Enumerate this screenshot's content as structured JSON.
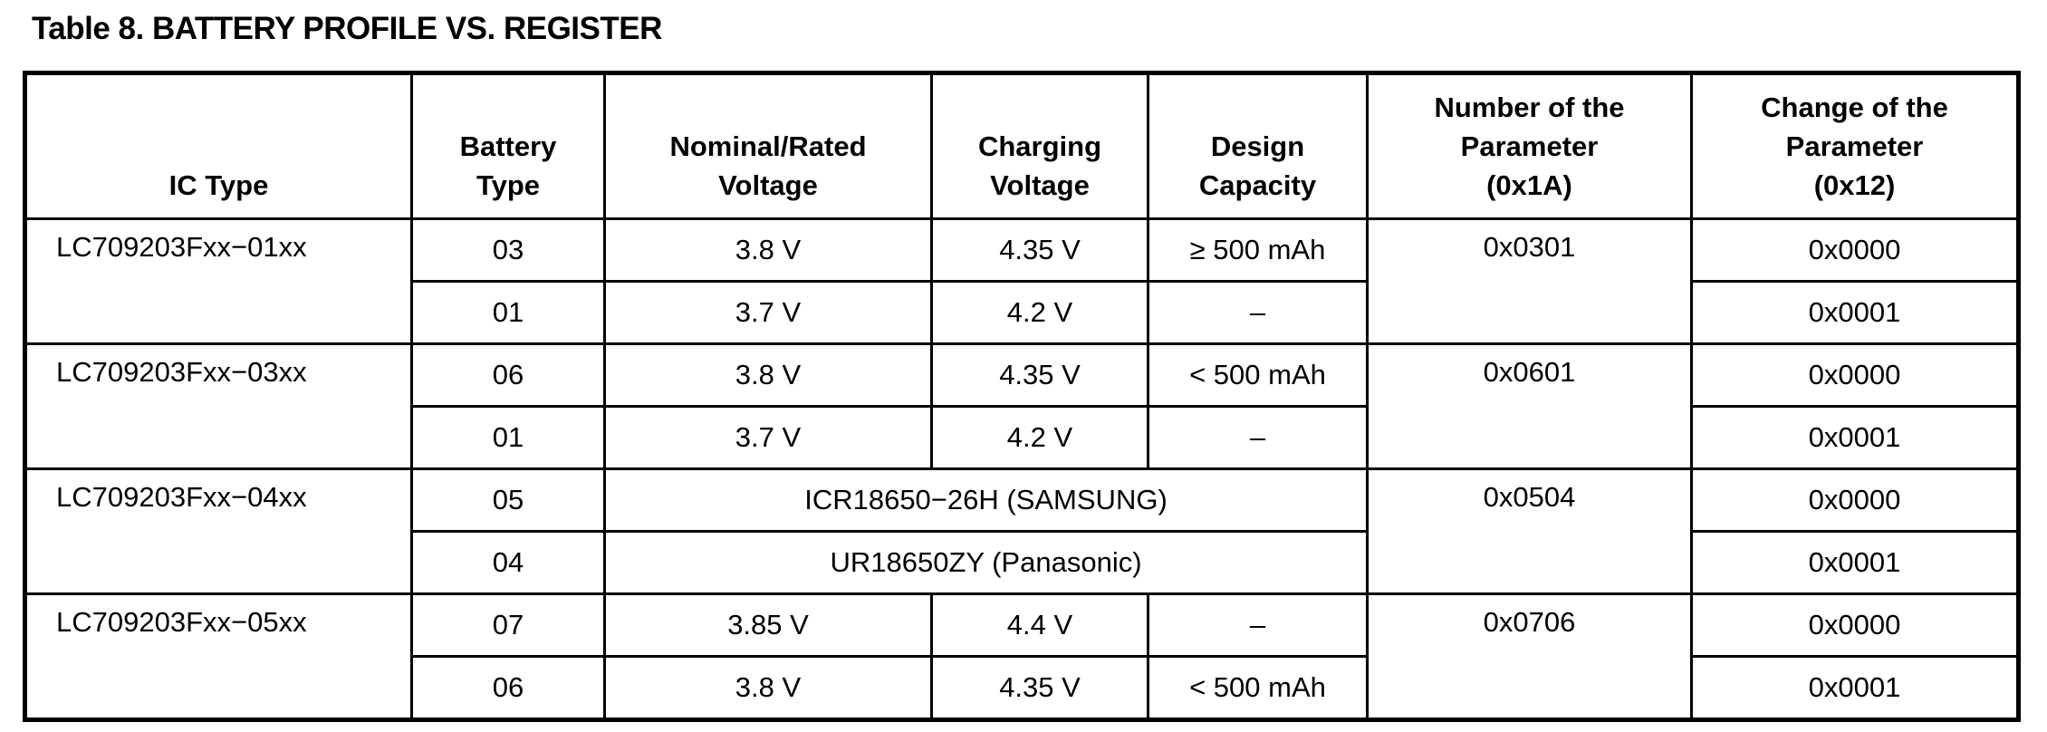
{
  "title": "Table 8. BATTERY PROFILE VS. REGISTER",
  "headers": [
    "IC Type",
    "Battery Type",
    "Nominal/Rated Voltage",
    "Charging Voltage",
    "Design Capacity",
    "Number of the Parameter (0x1A)",
    "Change of the Parameter (0x12)"
  ],
  "groups": [
    {
      "ic": "LC709203Fxx−01xx",
      "param": "0x0301",
      "rows": [
        {
          "battery": "03",
          "nominal": "3.8 V",
          "charging": "4.35 V",
          "capacity": "≥ 500 mAh",
          "change": "0x0000"
        },
        {
          "battery": "01",
          "nominal": "3.7 V",
          "charging": "4.2 V",
          "capacity": "–",
          "change": "0x0001"
        }
      ]
    },
    {
      "ic": "LC709203Fxx−03xx",
      "param": "0x0601",
      "rows": [
        {
          "battery": "06",
          "nominal": "3.8 V",
          "charging": "4.35 V",
          "capacity": "< 500 mAh",
          "change": "0x0000"
        },
        {
          "battery": "01",
          "nominal": "3.7 V",
          "charging": "4.2 V",
          "capacity": "–",
          "change": "0x0001"
        }
      ]
    },
    {
      "ic": "LC709203Fxx−04xx",
      "param": "0x0504",
      "rows": [
        {
          "battery": "05",
          "spec": "ICR18650−26H (SAMSUNG)",
          "change": "0x0000"
        },
        {
          "battery": "04",
          "spec": "UR18650ZY (Panasonic)",
          "change": "0x0001"
        }
      ]
    },
    {
      "ic": "LC709203Fxx−05xx",
      "param": "0x0706",
      "rows": [
        {
          "battery": "07",
          "nominal": "3.85 V",
          "charging": "4.4 V",
          "capacity": "–",
          "change": "0x0000"
        },
        {
          "battery": "06",
          "nominal": "3.8 V",
          "charging": "4.35 V",
          "capacity": "< 500 mAh",
          "change": "0x0001"
        }
      ]
    }
  ]
}
